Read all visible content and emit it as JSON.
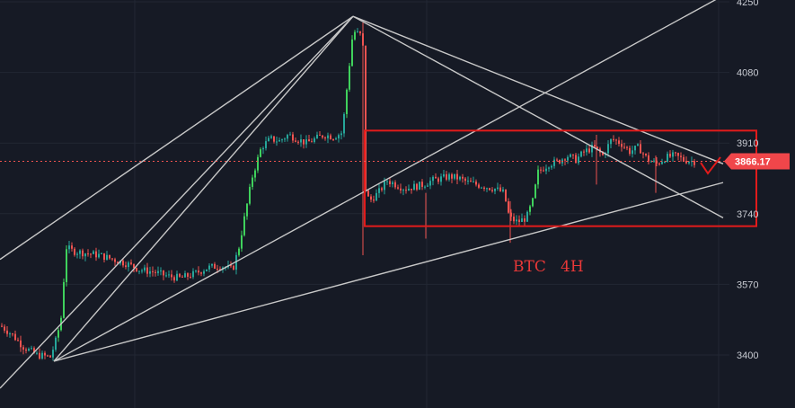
{
  "chart_data": {
    "type": "candlestick",
    "title": "",
    "annotation": "BTC   4H",
    "symbol": "BTC",
    "timeframe": "4H",
    "y_axis": {
      "position": "right",
      "ticks": [
        4250,
        4080,
        3910,
        3740,
        3570,
        3400
      ],
      "range": [
        3280,
        4255
      ]
    },
    "current_price": "3866.17",
    "colors": {
      "background": "#161a25",
      "up": "#26a69a",
      "up_bright": "#3fd15c",
      "down": "#ef5350",
      "trendline": "#c8c8c8",
      "box": "#e21b1b",
      "price_line": "#ef5350",
      "price_tag": "#f0464a",
      "grid": "#222733"
    },
    "price_series_approx": [
      [
        0,
        3470
      ],
      [
        12,
        3450
      ],
      [
        25,
        3420
      ],
      [
        40,
        3400
      ],
      [
        55,
        3395
      ],
      [
        62,
        3440
      ],
      [
        68,
        3500
      ],
      [
        72,
        3660
      ],
      [
        80,
        3650
      ],
      [
        95,
        3645
      ],
      [
        110,
        3640
      ],
      [
        125,
        3630
      ],
      [
        140,
        3620
      ],
      [
        155,
        3605
      ],
      [
        170,
        3600
      ],
      [
        185,
        3590
      ],
      [
        200,
        3585
      ],
      [
        215,
        3595
      ],
      [
        230,
        3610
      ],
      [
        245,
        3615
      ],
      [
        258,
        3605
      ],
      [
        265,
        3660
      ],
      [
        272,
        3740
      ],
      [
        280,
        3830
      ],
      [
        290,
        3900
      ],
      [
        300,
        3920
      ],
      [
        310,
        3915
      ],
      [
        320,
        3930
      ],
      [
        330,
        3920
      ],
      [
        340,
        3910
      ],
      [
        350,
        3920
      ],
      [
        360,
        3930
      ],
      [
        370,
        3925
      ],
      [
        380,
        3935
      ],
      [
        386,
        4060
      ],
      [
        392,
        4180
      ],
      [
        400,
        4170
      ],
      [
        404,
        4130
      ],
      [
        406,
        3800
      ],
      [
        410,
        3770
      ],
      [
        420,
        3790
      ],
      [
        430,
        3820
      ],
      [
        440,
        3810
      ],
      [
        450,
        3800
      ],
      [
        460,
        3805
      ],
      [
        470,
        3810
      ],
      [
        480,
        3820
      ],
      [
        490,
        3825
      ],
      [
        500,
        3830
      ],
      [
        510,
        3825
      ],
      [
        520,
        3815
      ],
      [
        530,
        3810
      ],
      [
        540,
        3805
      ],
      [
        550,
        3800
      ],
      [
        560,
        3790
      ],
      [
        566,
        3730
      ],
      [
        575,
        3720
      ],
      [
        585,
        3730
      ],
      [
        592,
        3770
      ],
      [
        598,
        3840
      ],
      [
        610,
        3860
      ],
      [
        620,
        3865
      ],
      [
        630,
        3880
      ],
      [
        640,
        3870
      ],
      [
        650,
        3890
      ],
      [
        660,
        3900
      ],
      [
        670,
        3880
      ],
      [
        680,
        3920
      ],
      [
        690,
        3910
      ],
      [
        700,
        3890
      ],
      [
        710,
        3900
      ],
      [
        720,
        3870
      ],
      [
        730,
        3860
      ],
      [
        740,
        3875
      ],
      [
        750,
        3880
      ],
      [
        760,
        3870
      ],
      [
        770,
        3866
      ]
    ],
    "drawings": [
      {
        "kind": "trendline",
        "from": [
          0,
          3630
        ],
        "to": [
          393,
          4215
        ]
      },
      {
        "kind": "trendline",
        "from": [
          0,
          3320
        ],
        "to": [
          393,
          4215
        ]
      },
      {
        "kind": "trendline",
        "from": [
          60,
          3385
        ],
        "to": [
          393,
          4215
        ]
      },
      {
        "kind": "trendline",
        "from": [
          393,
          4215
        ],
        "to": [
          805,
          3860
        ]
      },
      {
        "kind": "trendline",
        "from": [
          393,
          4215
        ],
        "to": [
          805,
          3730
        ]
      },
      {
        "kind": "trendline",
        "from": [
          60,
          3385
        ],
        "to": [
          805,
          4265
        ]
      },
      {
        "kind": "trendline",
        "from": [
          60,
          3385
        ],
        "to": [
          805,
          3815
        ]
      },
      {
        "kind": "rectangle",
        "x1": 406,
        "x2": 842,
        "p1": 3940,
        "p2": 3710
      },
      {
        "kind": "check-mark",
        "at": [
          790,
          3850
        ]
      }
    ]
  }
}
